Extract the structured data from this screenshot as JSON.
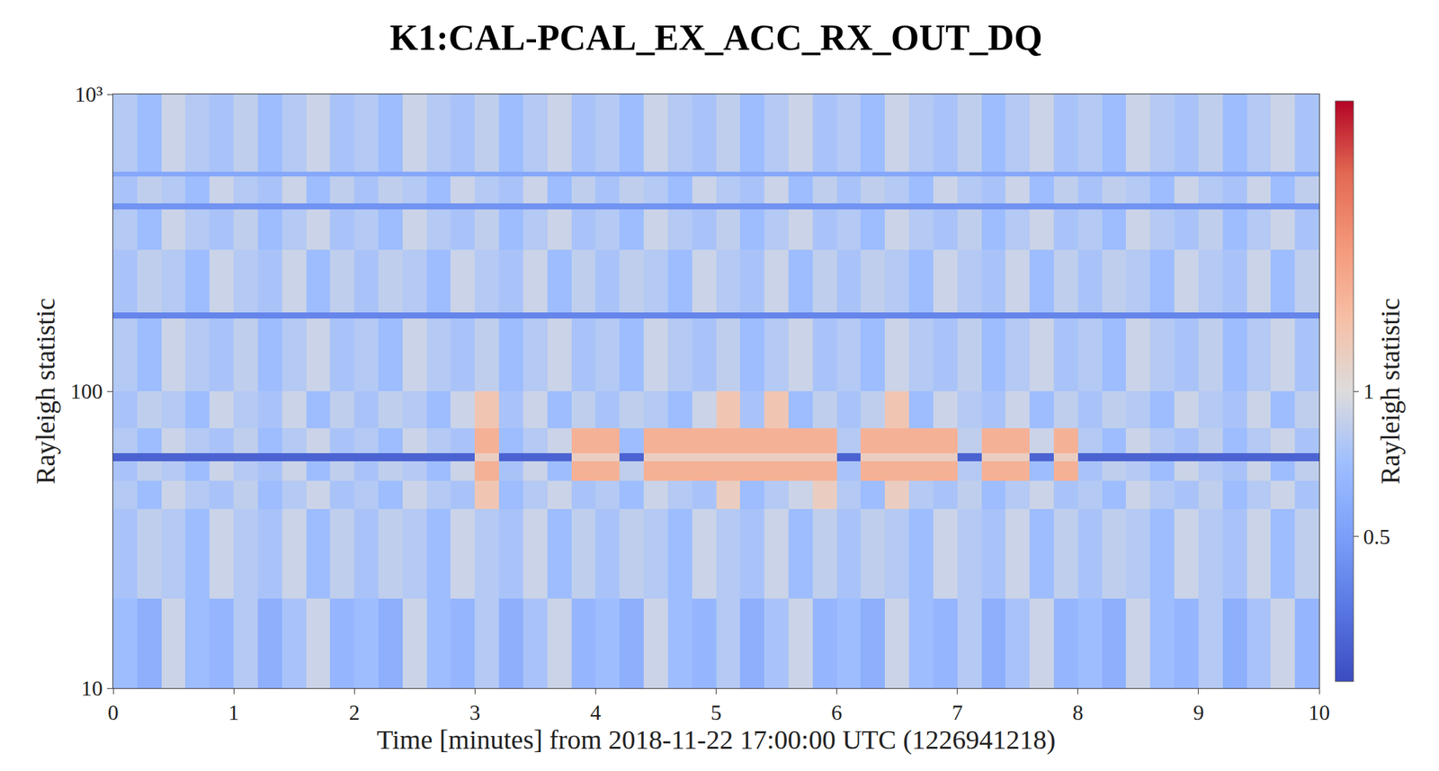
{
  "chart_data": {
    "type": "heatmap",
    "title": "K1:CAL-PCAL_EX_ACC_RX_OUT_DQ",
    "xlabel": "Time [minutes] from 2018-11-22 17:00:00 UTC (1226941218)",
    "ylabel": "Rayleigh statistic",
    "colorbar_label": "Rayleigh statistic",
    "log": "y",
    "xlim": [
      0,
      10
    ],
    "xticks": [
      0,
      1,
      2,
      3,
      4,
      5,
      6,
      7,
      8,
      9,
      10
    ],
    "ylim": [
      10,
      1000
    ],
    "yticks": [
      10,
      100,
      {
        "value": 1000,
        "label": "10³"
      }
    ],
    "zlim": [
      0.25,
      4
    ],
    "zticks": [
      0.5,
      1
    ],
    "x": [
      0,
      0.2,
      0.4,
      0.6,
      0.8,
      1,
      1.2,
      1.4,
      1.6,
      1.8,
      2,
      2.2,
      2.4,
      2.6,
      2.8,
      3,
      3.2,
      3.4,
      3.6,
      3.8,
      4,
      4.2,
      4.4,
      4.6,
      4.8,
      5,
      5.2,
      5.4,
      5.6,
      5.8,
      6,
      6.2,
      6.4,
      6.6,
      6.8,
      7,
      7.2,
      7.4,
      7.6,
      7.8,
      8,
      8.2,
      8.4,
      8.6,
      8.8,
      9,
      9.2,
      9.4,
      9.6,
      9.8,
      10
    ],
    "y": [
      10,
      20,
      40,
      50,
      58,
      62,
      75,
      100,
      176,
      184,
      300,
      410,
      430,
      530,
      550,
      1000
    ],
    "z": [
      [
        0.7,
        0.6,
        0.9,
        0.7,
        0.65,
        0.8,
        0.6,
        0.75,
        0.9,
        0.65,
        0.7,
        0.6,
        0.9,
        0.7,
        0.65,
        0.8,
        0.6,
        0.75,
        0.9,
        0.65,
        0.7,
        0.6,
        0.9,
        0.7,
        0.65,
        0.8,
        0.6,
        0.75,
        0.9,
        0.65,
        0.7,
        0.6,
        0.9,
        0.7,
        0.65,
        0.8,
        0.6,
        0.75,
        0.9,
        0.65,
        0.7,
        0.6,
        0.9,
        0.7,
        0.65,
        0.8,
        0.6,
        0.75,
        0.9,
        0.65
      ],
      [
        0.75,
        0.85,
        0.8,
        0.7,
        0.9,
        0.8,
        0.75,
        0.9,
        0.7,
        0.85,
        0.75,
        0.85,
        0.8,
        0.7,
        0.9,
        0.8,
        0.75,
        0.9,
        0.7,
        0.85,
        0.75,
        0.85,
        0.8,
        0.7,
        0.9,
        0.8,
        0.75,
        0.9,
        0.7,
        0.85,
        0.75,
        0.85,
        0.8,
        0.7,
        0.9,
        0.8,
        0.75,
        0.9,
        0.7,
        0.85,
        0.75,
        0.85,
        0.8,
        0.7,
        0.9,
        0.8,
        0.75,
        0.9,
        0.7,
        0.85
      ],
      [
        0.8,
        0.7,
        0.9,
        0.8,
        0.75,
        0.85,
        0.7,
        0.8,
        0.9,
        0.75,
        0.8,
        0.7,
        0.9,
        0.8,
        0.75,
        1.3,
        0.7,
        0.8,
        0.9,
        0.75,
        0.8,
        0.7,
        0.9,
        0.8,
        0.75,
        1.2,
        0.7,
        0.8,
        0.9,
        1.2,
        0.8,
        0.7,
        1.2,
        0.8,
        0.75,
        0.85,
        0.7,
        0.8,
        0.9,
        0.75,
        0.8,
        0.7,
        0.9,
        0.8,
        0.75,
        0.85,
        0.7,
        0.8,
        0.9,
        0.75
      ],
      [
        0.75,
        0.85,
        0.8,
        0.7,
        0.9,
        0.8,
        0.75,
        0.9,
        0.7,
        0.85,
        0.75,
        0.85,
        0.8,
        0.7,
        0.9,
        1.6,
        0.75,
        0.9,
        0.7,
        1.6,
        1.6,
        0.85,
        1.6,
        1.6,
        1.6,
        1.6,
        1.6,
        1.6,
        1.6,
        1.6,
        0.75,
        1.6,
        1.6,
        1.6,
        1.6,
        0.8,
        1.6,
        1.6,
        0.7,
        1.6,
        0.75,
        0.85,
        0.8,
        0.7,
        0.9,
        0.8,
        0.75,
        0.9,
        0.7,
        0.85
      ],
      [
        0.3,
        0.3,
        0.3,
        0.3,
        0.3,
        0.3,
        0.3,
        0.3,
        0.3,
        0.3,
        0.3,
        0.3,
        0.3,
        0.3,
        0.3,
        1.2,
        0.3,
        0.3,
        0.3,
        1.2,
        1.2,
        0.3,
        1.2,
        1.2,
        1.2,
        1.2,
        1.2,
        1.2,
        1.2,
        1.2,
        0.3,
        1.2,
        1.2,
        1.2,
        1.2,
        0.3,
        1.2,
        1.2,
        0.3,
        1.2,
        0.3,
        0.3,
        0.3,
        0.3,
        0.3,
        0.3,
        0.3,
        0.3,
        0.3,
        0.3
      ],
      [
        0.8,
        0.7,
        0.9,
        0.8,
        0.75,
        0.85,
        0.7,
        0.8,
        0.9,
        0.75,
        0.8,
        0.7,
        0.9,
        0.8,
        0.75,
        1.6,
        0.7,
        0.8,
        0.9,
        1.6,
        1.6,
        0.7,
        1.6,
        1.6,
        1.6,
        1.6,
        1.6,
        1.6,
        1.6,
        1.6,
        0.8,
        1.6,
        1.6,
        1.6,
        1.6,
        0.85,
        1.6,
        1.6,
        0.9,
        1.6,
        0.8,
        0.7,
        0.9,
        0.8,
        0.75,
        0.85,
        0.7,
        0.8,
        0.9,
        0.75
      ],
      [
        0.75,
        0.85,
        0.8,
        0.7,
        0.9,
        0.8,
        0.75,
        0.9,
        0.7,
        0.85,
        0.75,
        0.85,
        0.8,
        0.7,
        0.9,
        1.3,
        0.75,
        0.9,
        0.7,
        0.85,
        0.75,
        0.85,
        0.8,
        0.7,
        0.9,
        1.3,
        0.75,
        1.3,
        0.7,
        0.85,
        0.75,
        0.85,
        1.3,
        0.7,
        0.9,
        0.8,
        0.75,
        0.9,
        0.7,
        0.85,
        0.75,
        0.85,
        0.8,
        0.7,
        0.9,
        0.8,
        0.75,
        0.9,
        0.7,
        0.85
      ],
      [
        0.8,
        0.7,
        0.9,
        0.8,
        0.75,
        0.85,
        0.7,
        0.8,
        0.9,
        0.75,
        0.8,
        0.7,
        0.9,
        0.8,
        0.75,
        0.85,
        0.7,
        0.8,
        0.9,
        0.75,
        0.8,
        0.7,
        0.9,
        0.8,
        0.75,
        0.85,
        0.7,
        0.8,
        0.9,
        0.75,
        0.8,
        0.7,
        0.9,
        0.8,
        0.75,
        0.85,
        0.7,
        0.8,
        0.9,
        0.75,
        0.8,
        0.7,
        0.9,
        0.8,
        0.75,
        0.85,
        0.7,
        0.8,
        0.9,
        0.75
      ],
      [
        0.4,
        0.4,
        0.4,
        0.4,
        0.4,
        0.4,
        0.4,
        0.4,
        0.4,
        0.4,
        0.4,
        0.4,
        0.4,
        0.4,
        0.4,
        0.4,
        0.4,
        0.4,
        0.4,
        0.4,
        0.4,
        0.4,
        0.4,
        0.4,
        0.4,
        0.4,
        0.4,
        0.4,
        0.4,
        0.4,
        0.4,
        0.4,
        0.4,
        0.4,
        0.4,
        0.4,
        0.4,
        0.4,
        0.4,
        0.4,
        0.4,
        0.4,
        0.4,
        0.4,
        0.4,
        0.4,
        0.4,
        0.4,
        0.4,
        0.4
      ],
      [
        0.75,
        0.85,
        0.8,
        0.7,
        0.9,
        0.8,
        0.75,
        0.9,
        0.7,
        0.85,
        0.75,
        0.85,
        0.8,
        0.7,
        0.9,
        0.8,
        0.75,
        0.9,
        0.7,
        0.85,
        0.75,
        0.85,
        0.8,
        0.7,
        0.9,
        0.8,
        0.75,
        0.9,
        0.7,
        0.85,
        0.75,
        0.85,
        0.8,
        0.7,
        0.9,
        0.8,
        0.75,
        0.9,
        0.7,
        0.85,
        0.75,
        0.85,
        0.8,
        0.7,
        0.9,
        0.8,
        0.75,
        0.9,
        0.7,
        0.85
      ],
      [
        0.8,
        0.7,
        0.9,
        0.8,
        0.75,
        0.85,
        0.7,
        0.8,
        0.9,
        0.75,
        0.8,
        0.7,
        0.9,
        0.8,
        0.75,
        0.85,
        0.7,
        0.8,
        0.9,
        0.75,
        0.8,
        0.7,
        0.9,
        0.8,
        0.75,
        0.85,
        0.7,
        0.8,
        0.9,
        0.75,
        0.8,
        0.7,
        0.9,
        0.8,
        0.75,
        0.85,
        0.7,
        0.8,
        0.9,
        0.75,
        0.8,
        0.7,
        0.9,
        0.8,
        0.75,
        0.85,
        0.7,
        0.8,
        0.9,
        0.75
      ],
      [
        0.45,
        0.45,
        0.45,
        0.45,
        0.45,
        0.45,
        0.45,
        0.45,
        0.45,
        0.45,
        0.45,
        0.45,
        0.45,
        0.45,
        0.45,
        0.45,
        0.45,
        0.45,
        0.45,
        0.45,
        0.45,
        0.45,
        0.45,
        0.45,
        0.45,
        0.45,
        0.45,
        0.45,
        0.45,
        0.45,
        0.45,
        0.45,
        0.45,
        0.45,
        0.45,
        0.45,
        0.45,
        0.45,
        0.45,
        0.45,
        0.45,
        0.45,
        0.45,
        0.45,
        0.45,
        0.45,
        0.45,
        0.45,
        0.45,
        0.45
      ],
      [
        0.75,
        0.85,
        0.8,
        0.7,
        0.9,
        0.8,
        0.75,
        0.9,
        0.7,
        0.85,
        0.75,
        0.85,
        0.8,
        0.7,
        0.9,
        0.8,
        0.75,
        0.9,
        0.7,
        0.85,
        0.75,
        0.85,
        0.8,
        0.7,
        0.9,
        0.8,
        0.75,
        0.9,
        0.7,
        0.85,
        0.75,
        0.85,
        0.8,
        0.7,
        0.9,
        0.8,
        0.75,
        0.9,
        0.7,
        0.85,
        0.75,
        0.85,
        0.8,
        0.7,
        0.9,
        0.8,
        0.75,
        0.9,
        0.7,
        0.85
      ],
      [
        0.55,
        0.55,
        0.55,
        0.55,
        0.55,
        0.55,
        0.55,
        0.55,
        0.55,
        0.55,
        0.55,
        0.55,
        0.55,
        0.55,
        0.55,
        0.55,
        0.55,
        0.55,
        0.55,
        0.55,
        0.55,
        0.55,
        0.55,
        0.55,
        0.55,
        0.55,
        0.55,
        0.55,
        0.55,
        0.55,
        0.55,
        0.55,
        0.55,
        0.55,
        0.55,
        0.55,
        0.55,
        0.55,
        0.55,
        0.55,
        0.55,
        0.55,
        0.55,
        0.55,
        0.55,
        0.55,
        0.55,
        0.55,
        0.55,
        0.55
      ],
      [
        0.8,
        0.7,
        0.9,
        0.8,
        0.75,
        0.85,
        0.7,
        0.8,
        0.9,
        0.75,
        0.8,
        0.7,
        0.9,
        0.8,
        0.75,
        0.85,
        0.7,
        0.8,
        0.9,
        0.75,
        0.8,
        0.7,
        0.9,
        0.8,
        0.75,
        0.85,
        0.7,
        0.8,
        0.9,
        0.75,
        0.8,
        0.7,
        0.9,
        0.8,
        0.75,
        0.85,
        0.7,
        0.8,
        0.9,
        0.75,
        0.8,
        0.7,
        0.9,
        0.8,
        0.75,
        0.85,
        0.7,
        0.8,
        0.9,
        0.75
      ]
    ]
  }
}
